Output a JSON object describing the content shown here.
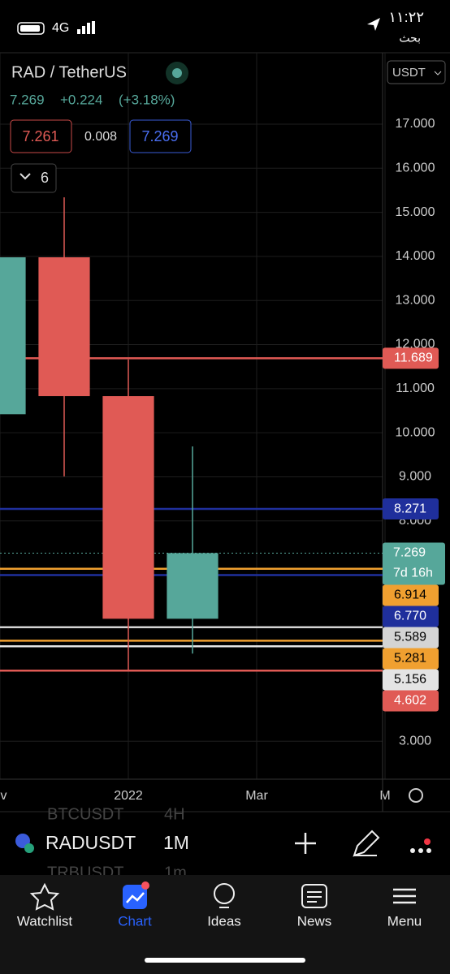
{
  "status_bar": {
    "network": "4G",
    "time": "١١:٢٢",
    "back_label": "بحث"
  },
  "header": {
    "symbol": "RAD / TetherUS",
    "currency": "USDT",
    "last": "7.269",
    "change": "+0.224",
    "change_pct": "(+3.18%)",
    "bid": "7.261",
    "spread": "0.008",
    "ask": "7.269",
    "indicators": "6"
  },
  "chart_data": {
    "type": "candlestick",
    "open": [
      10.42,
      13.98,
      10.83,
      5.78
    ],
    "high": [
      null,
      15.34,
      11.66,
      9.69
    ],
    "low": [
      null,
      9.01,
      4.62,
      4.99
    ],
    "close": [
      13.98,
      10.83,
      5.78,
      7.269
    ],
    "up_color": "#56a79a",
    "down_color": "#e05a55",
    "xlim": [
      0,
      6
    ],
    "xticks": [
      {
        "value": 0,
        "label": "ov"
      },
      {
        "value": 2,
        "label": "2022"
      },
      {
        "value": 4,
        "label": "Mar"
      },
      {
        "value": 6,
        "label": "M"
      }
    ],
    "ylim": [
      2.14,
      18.62
    ],
    "yticks": [
      {
        "value": 17,
        "label": "17.000"
      },
      {
        "value": 16,
        "label": "16.000"
      },
      {
        "value": 15,
        "label": "15.000"
      },
      {
        "value": 14,
        "label": "14.000"
      },
      {
        "value": 13,
        "label": "13.000"
      },
      {
        "value": 12,
        "label": "12.000"
      },
      {
        "value": 11,
        "label": "11.000"
      },
      {
        "value": 10,
        "label": "10.000"
      },
      {
        "value": 9,
        "label": "9.000"
      },
      {
        "value": 8,
        "label": "8.000"
      },
      {
        "value": 3,
        "label": "3.000"
      }
    ],
    "grid": true,
    "levels": [
      {
        "price": 11.689,
        "color": "#e05a55",
        "text": "#ffffff"
      },
      {
        "price": 8.271,
        "color": "#1f2f9c",
        "text": "#ffffff"
      },
      {
        "price": 6.914,
        "color": "#f0a030",
        "text": "#000000"
      },
      {
        "price": {
          "value": 6.77,
          "label": "6.770"
        },
        "color": "#1f2f9c",
        "text": "#ffffff"
      },
      {
        "price": 5.589,
        "color": "#d4d4d4",
        "text": "#000000"
      },
      {
        "price": 5.281,
        "color": "#f0a030",
        "text": "#000000"
      },
      {
        "price": 5.156,
        "color": "#e4e4e4",
        "text": "#000000"
      },
      {
        "price": 4.602,
        "color": "#e05a55",
        "text": "#ffffff"
      }
    ],
    "last_price": {
      "value": 7.269,
      "countdown": "7d 16h",
      "color": "#56a79a"
    }
  },
  "toolbar": {
    "prev_symbol": "BTCUSDT",
    "prev_interval": "4H",
    "symbol": "RADUSDT",
    "interval": "1M",
    "next_symbol": "TRBUSDT",
    "next_interval": "1m"
  },
  "tabs": [
    "Watchlist",
    "Chart",
    "Ideas",
    "News",
    "Menu"
  ]
}
